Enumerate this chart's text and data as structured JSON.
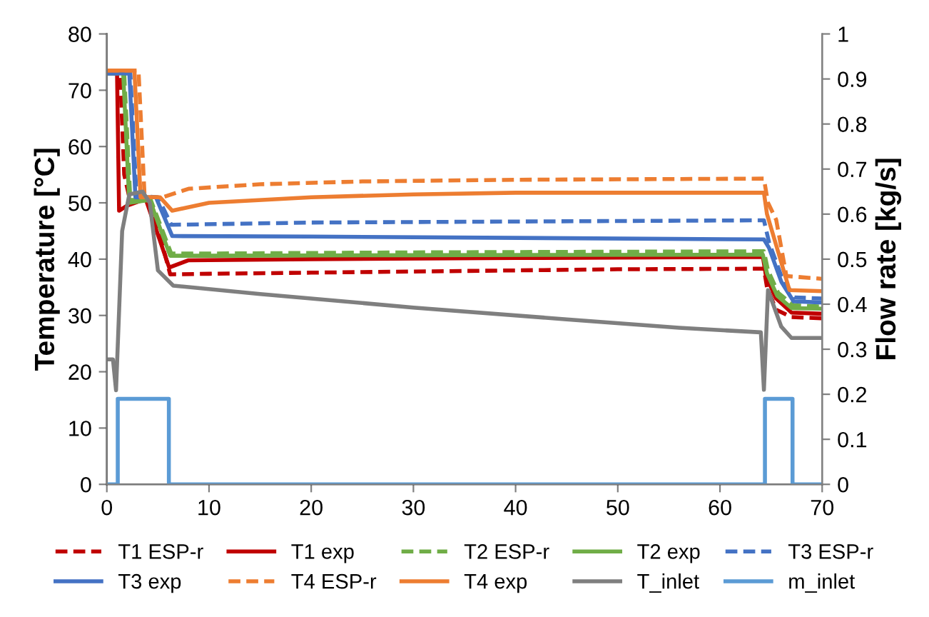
{
  "chart_data": {
    "type": "line",
    "ylabel": "Temperature [°C]",
    "y2label": "Flow rate [kg/s]",
    "xlim": [
      0,
      70
    ],
    "xticks": [
      0,
      10,
      20,
      30,
      40,
      50,
      60,
      70
    ],
    "ylim": [
      0,
      80
    ],
    "yticks": [
      0,
      10,
      20,
      30,
      40,
      50,
      60,
      70,
      80
    ],
    "y2lim": [
      0,
      1
    ],
    "y2ticks": [
      0,
      0.1,
      0.2,
      0.3,
      0.4,
      0.5,
      0.6,
      0.7,
      0.8,
      0.9,
      1
    ],
    "grid": false,
    "legend": "bottom",
    "marker": "none",
    "series": [
      {
        "name": "T1 ESP-r",
        "color": "#c00000",
        "line_style": "dashed",
        "x": [
          0,
          1.3,
          1.7,
          2.2,
          4.2,
          6.2,
          10,
          20,
          30,
          40,
          50,
          64.3,
          64.6,
          65.5,
          67,
          70
        ],
        "values": [
          73,
          73,
          55,
          51,
          51,
          37.3,
          37.4,
          37.6,
          37.8,
          38,
          38.2,
          38.3,
          35,
          31,
          29.7,
          29.5
        ]
      },
      {
        "name": "T1 exp",
        "color": "#c00000",
        "line_style": "solid",
        "x": [
          0,
          1.0,
          1.2,
          2,
          3.8,
          6.1,
          8,
          20,
          40,
          64.2,
          64.5,
          65.5,
          67,
          70
        ],
        "values": [
          73,
          73,
          48.6,
          49.5,
          50.7,
          38.5,
          39.8,
          40,
          40.2,
          40.4,
          37,
          33,
          30.5,
          30.3
        ]
      },
      {
        "name": "T2 ESP-r",
        "color": "#70ad47",
        "line_style": "dashed",
        "x": [
          0,
          1.7,
          2.3,
          4.3,
          6.3,
          10,
          30,
          64.3,
          64.7,
          65.7,
          67.2,
          70
        ],
        "values": [
          73,
          73,
          50.5,
          50.5,
          41,
          41,
          41.2,
          41.4,
          38,
          34,
          31.8,
          31.6
        ]
      },
      {
        "name": "T2 exp",
        "color": "#70ad47",
        "line_style": "solid",
        "x": [
          0,
          1.6,
          2.2,
          4.2,
          6.2,
          10,
          30,
          64.2,
          64.6,
          65.6,
          67,
          70
        ],
        "values": [
          73,
          73,
          50,
          50.5,
          40.6,
          40.6,
          40.7,
          40.8,
          37.5,
          33.5,
          31.3,
          31.2
        ]
      },
      {
        "name": "T3 ESP-r",
        "color": "#4472c4",
        "line_style": "dashed",
        "x": [
          0,
          2.3,
          2.9,
          5.0,
          6.3,
          20,
          64.3,
          64.8,
          66,
          67.3,
          70
        ],
        "values": [
          73,
          73,
          51.2,
          51,
          46.1,
          46.5,
          46.9,
          43,
          37,
          33.2,
          33.0
        ]
      },
      {
        "name": "T3 exp",
        "color": "#4472c4",
        "line_style": "solid",
        "x": [
          0,
          2.2,
          2.8,
          4.8,
          6.4,
          20,
          64.3,
          64.8,
          66,
          67.2,
          70
        ],
        "values": [
          73,
          73,
          51,
          51,
          44.1,
          44,
          43.5,
          42,
          36,
          32.5,
          32.3
        ]
      },
      {
        "name": "T4 ESP-r",
        "color": "#ed7d31",
        "line_style": "dashed",
        "x": [
          0,
          3.1,
          3.7,
          5.5,
          8,
          15,
          25,
          40,
          64.3,
          64.7,
          65.5,
          66.5,
          70
        ],
        "values": [
          73.5,
          73.5,
          51,
          51,
          52.5,
          53.3,
          53.8,
          54.1,
          54.3,
          50,
          47,
          37,
          36.5
        ]
      },
      {
        "name": "T4 exp",
        "color": "#ed7d31",
        "line_style": "solid",
        "x": [
          0,
          2.7,
          3.3,
          5.2,
          6.4,
          10,
          20,
          30,
          40,
          64.3,
          64.6,
          66.8,
          70
        ],
        "values": [
          73.5,
          73.5,
          51,
          51,
          48.6,
          50,
          51,
          51.5,
          51.8,
          51.8,
          48,
          34.5,
          34.3
        ]
      },
      {
        "name": "T_inlet",
        "color": "#7f7f7f",
        "line_style": "solid",
        "x": [
          0,
          0.6,
          0.9,
          1.5,
          2.2,
          3.5,
          4.2,
          5.0,
          6.5,
          15,
          30,
          45,
          56,
          64.0,
          64.3,
          64.7,
          66,
          67,
          70
        ],
        "values": [
          22.2,
          22.2,
          16.7,
          45,
          51.5,
          52,
          50,
          38,
          35.3,
          33.8,
          31.4,
          29.3,
          27.8,
          27.0,
          16.8,
          34.5,
          28,
          26,
          26
        ]
      },
      {
        "name": "m_inlet",
        "color": "#5b9bd5",
        "line_style": "solid",
        "axis": "y2",
        "x": [
          0,
          1.07,
          1.07,
          6.07,
          6.07,
          64.4,
          64.4,
          67.1,
          67.1,
          70
        ],
        "values": [
          0,
          0,
          0.19,
          0.19,
          0,
          0,
          0.19,
          0.19,
          0,
          0
        ]
      }
    ]
  }
}
